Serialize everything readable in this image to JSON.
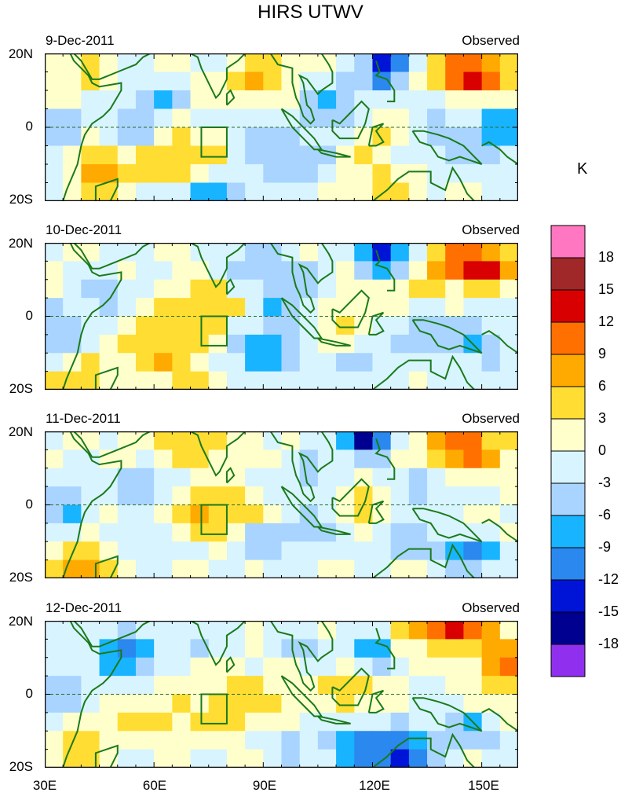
{
  "title": "HIRS UTWV",
  "unit_label": "K",
  "panels": [
    {
      "date": "9-Dec-2011",
      "label": "Observed"
    },
    {
      "date": "10-Dec-2011",
      "label": "Observed"
    },
    {
      "date": "11-Dec-2011",
      "label": "Observed"
    },
    {
      "date": "12-Dec-2011",
      "label": "Observed"
    }
  ],
  "lat_labels": [
    "20N",
    "0",
    "20S"
  ],
  "lon_labels": [
    "30E",
    "60E",
    "90E",
    "120E",
    "150E"
  ],
  "colorbar": {
    "labels": [
      "18",
      "15",
      "12",
      "9",
      "6",
      "3",
      "0",
      "-3",
      "-6",
      "-9",
      "-12",
      "-15",
      "-18"
    ],
    "colors": [
      "#ff77c0",
      "#a02828",
      "#d80000",
      "#ff7000",
      "#ffaa00",
      "#ffdd33",
      "#ffffcc",
      "#d8f4ff",
      "#a8d4ff",
      "#18b4ff",
      "#2a88ee",
      "#0014d8",
      "#000090",
      "#9030ee"
    ]
  }
}
